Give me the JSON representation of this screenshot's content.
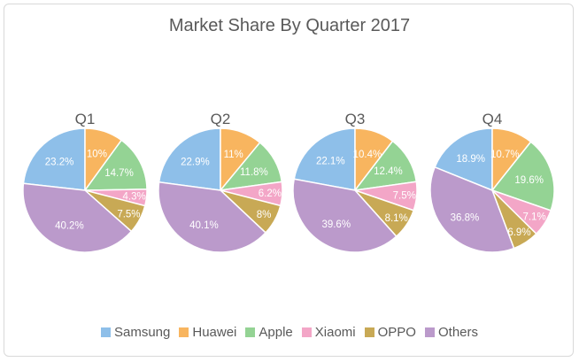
{
  "chart_data": {
    "type": "pie",
    "title": "Market Share By Quarter 2017",
    "categories": [
      "Samsung",
      "Huawei",
      "Apple",
      "Xiaomi",
      "OPPO",
      "Others"
    ],
    "colors": [
      "#8ebfe9",
      "#f8b55f",
      "#94d394",
      "#f3a6c7",
      "#c8a955",
      "#bb9acb"
    ],
    "legend_position": "bottom",
    "pies": [
      {
        "name": "Q1",
        "values": [
          23.2,
          10,
          14.7,
          4.3,
          7.5,
          40.2
        ],
        "labels": [
          "23.2%",
          "10%",
          "14.7%",
          "4.3%",
          "7.5%",
          "40.2%"
        ]
      },
      {
        "name": "Q2",
        "values": [
          22.9,
          11,
          11.8,
          6.2,
          8,
          40.1
        ],
        "labels": [
          "22.9%",
          "11%",
          "11.8%",
          "6.2%",
          "8%",
          "40.1%"
        ]
      },
      {
        "name": "Q3",
        "values": [
          22.1,
          10.4,
          12.4,
          7.5,
          8.1,
          39.6
        ],
        "labels": [
          "22.1%",
          "10.4%",
          "12.4%",
          "7.5%",
          "8.1%",
          "39.6%"
        ]
      },
      {
        "name": "Q4",
        "values": [
          18.9,
          10.7,
          19.6,
          7.1,
          6.9,
          36.8
        ],
        "labels": [
          "18.9%",
          "10.7%",
          "19.6%",
          "7.1%",
          "6.9%",
          "36.8%"
        ]
      }
    ]
  }
}
